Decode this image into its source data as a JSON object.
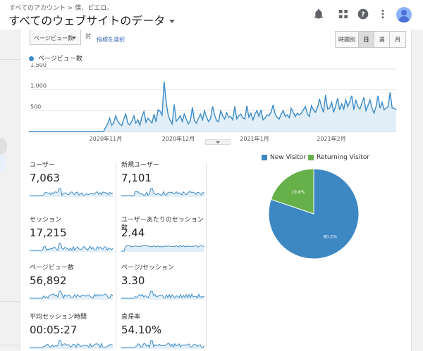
{
  "header": {
    "breadcrumb": "すべてのアカウント > 僕、ピエロ。",
    "title": "すべてのウェブサイトのデータ"
  },
  "toolbar": {
    "metric_select": "ページビュー数",
    "vs_label": "対",
    "pick_metric": "指標を選択",
    "ranges": [
      {
        "label": "時間別",
        "active": false
      },
      {
        "label": "日",
        "active": true
      },
      {
        "label": "週",
        "active": false
      },
      {
        "label": "月",
        "active": false
      }
    ]
  },
  "colors": {
    "series": "#3b8bc8",
    "fill": "#e3eff8",
    "new_visitor": "#3d87c3",
    "returning_visitor": "#66b04a"
  },
  "chart_data": [
    {
      "type": "line",
      "series": [
        {
          "name": "ページビュー数",
          "values": [
            0,
            0,
            0,
            0,
            0,
            0,
            0,
            0,
            0,
            0,
            0,
            0,
            0,
            0,
            0,
            0,
            0,
            0,
            0,
            0,
            0,
            0,
            0,
            0,
            0,
            0,
            0,
            0,
            0,
            0,
            0,
            0,
            0,
            0,
            0,
            0,
            0,
            0,
            100,
            180,
            320,
            150,
            200,
            380,
            250,
            180,
            140,
            300,
            420,
            200,
            160,
            250,
            380,
            200,
            280,
            150,
            360,
            480,
            220,
            320,
            260,
            200,
            420,
            230,
            520,
            480,
            390,
            1200,
            700,
            400,
            260,
            180,
            650,
            250,
            300,
            380,
            240,
            420,
            300,
            180,
            260,
            580,
            260,
            200,
            320,
            420,
            280,
            500,
            350,
            240,
            310,
            600,
            400,
            260,
            240,
            500,
            380,
            300,
            450,
            340,
            360,
            280,
            600,
            300,
            380,
            420,
            330,
            300,
            620,
            340,
            440,
            280,
            420,
            500,
            360,
            520,
            280,
            320,
            400,
            380,
            460,
            640,
            420,
            340,
            300,
            420,
            500,
            360,
            400,
            330,
            560,
            460,
            360,
            440,
            400,
            440,
            520,
            600,
            420,
            360,
            620,
            520,
            460,
            580,
            780,
            600,
            460,
            880,
            540,
            560,
            700,
            460,
            620,
            800,
            520,
            660,
            540,
            760,
            600,
            720,
            860,
            520,
            760,
            600,
            540,
            680,
            820,
            500,
            620,
            760,
            560,
            440,
            600,
            860,
            560,
            700,
            520,
            560,
            600,
            940,
            560,
            560,
            520
          ]
        }
      ],
      "x_tick_labels": [
        "2020年11月",
        "2020年12月",
        "2021年1月",
        "2021年2月"
      ],
      "y_tick_labels": [
        "500",
        "1,000",
        "1,500"
      ],
      "ylim": [
        0,
        1500
      ]
    },
    {
      "type": "pie",
      "slices": [
        {
          "name": "New Visitor",
          "value": 80.2,
          "label": "80.2%"
        },
        {
          "name": "Returning Visitor",
          "value": 19.8,
          "label": "19.8%"
        }
      ]
    }
  ],
  "metrics": [
    {
      "label": "ユーザー",
      "value": "7,063"
    },
    {
      "label": "新規ユーザー",
      "value": "7,101"
    },
    {
      "label": "セッション",
      "value": "17,215"
    },
    {
      "label": "ユーザーあたりのセッション数",
      "value": "2.44"
    },
    {
      "label": "ページビュー数",
      "value": "56,892"
    },
    {
      "label": "ページ/セッション",
      "value": "3.30"
    },
    {
      "label": "平均セッション時間",
      "value": "00:05:27"
    },
    {
      "label": "直帰率",
      "value": "54.10%"
    }
  ]
}
